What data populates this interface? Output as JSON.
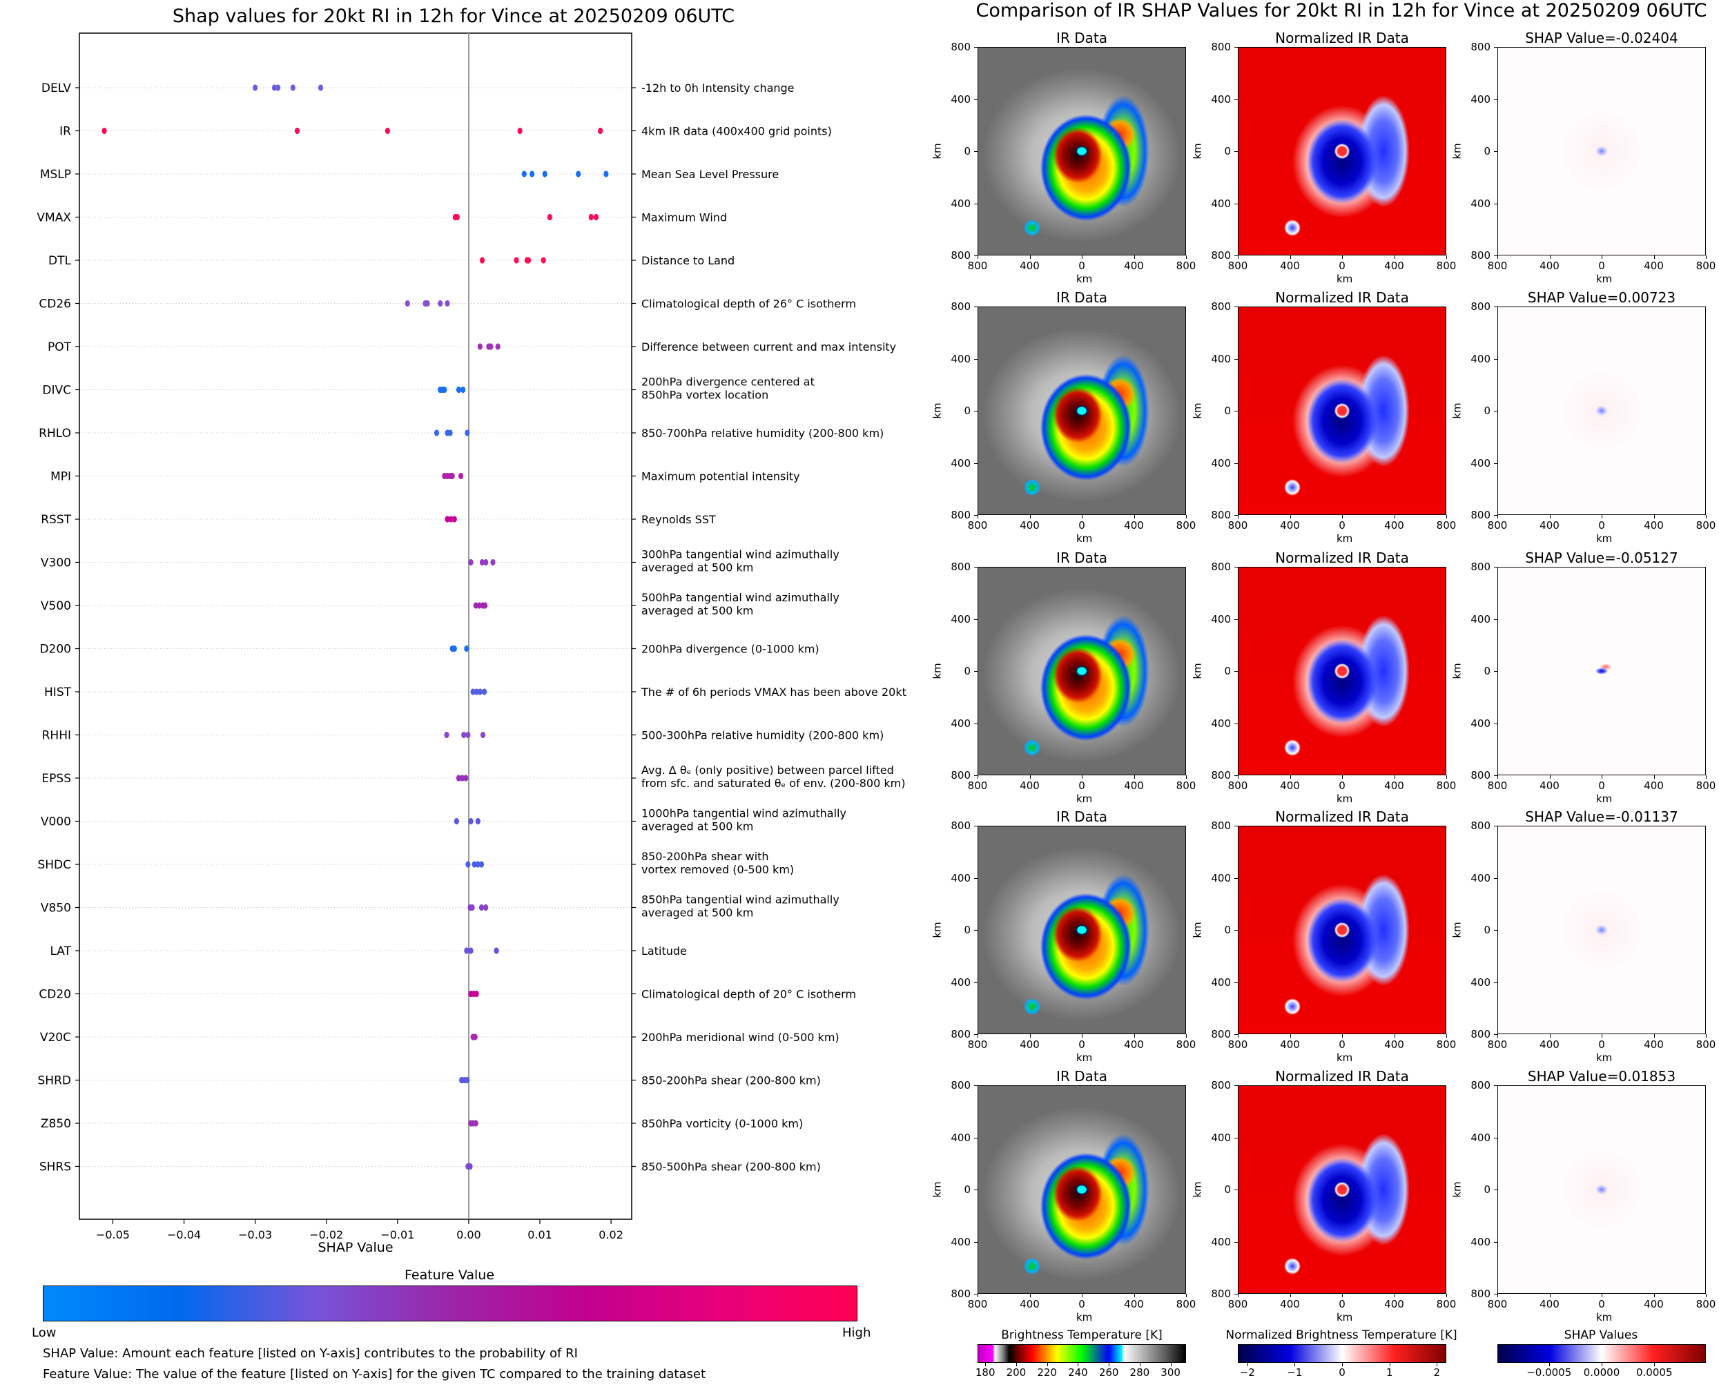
{
  "left_panel": {
    "title": "Shap values for 20kt RI in 12h for Vince at 20250209 06UTC",
    "xlabel": "SHAP Value",
    "colorbar": {
      "title": "Feature Value",
      "low_label": "Low",
      "high_label": "High",
      "colors": [
        "#008afb",
        "#0069ee",
        "#7654d9",
        "#9c25a8",
        "#c2008f",
        "#e8007a",
        "#ff0052"
      ]
    },
    "notes": [
      "SHAP Value: Amount each feature [listed on Y-axis] contributes to the probability of RI",
      "Feature Value: The value of the feature [listed on Y-axis] for the given TC compared to the training dataset"
    ]
  },
  "right_panel": {
    "title": "Comparison of IR SHAP Values for 20kt RI in 12h for Vince at 20250209 06UTC",
    "column_titles": [
      "IR Data",
      "Normalized IR Data"
    ],
    "shap_titles": [
      "SHAP Value=-0.02404",
      "SHAP Value=0.00723",
      "SHAP Value=-0.05127",
      "SHAP Value=-0.01137",
      "SHAP Value=0.01853"
    ],
    "axis_label": "km",
    "x_ticks": [
      "800",
      "400",
      "0",
      "400",
      "800"
    ],
    "y_ticks": [
      "800",
      "400",
      "0",
      "400",
      "800"
    ],
    "colorbars": [
      {
        "title": "Brightness Temperature [K]",
        "ticks": [
          "180",
          "200",
          "220",
          "240",
          "260",
          "280",
          "300"
        ],
        "range": [
          175,
          310
        ]
      },
      {
        "title": "Normalized Brightness Temperature [K]",
        "ticks": [
          "−2",
          "−1",
          "0",
          "1",
          "2"
        ],
        "range": [
          -2.2,
          2.2
        ]
      },
      {
        "title": "SHAP Values",
        "ticks": [
          "−0.0005",
          "0.0000",
          "0.0005"
        ],
        "range": [
          -0.00099,
          0.00099
        ]
      }
    ]
  },
  "chart_data": [
    {
      "type": "scatter",
      "title": "Shap values for 20kt RI in 12h for Vince at 20250209 06UTC",
      "xlabel": "SHAP Value",
      "ylabel": "",
      "xlim": [
        -0.0547,
        0.0229
      ],
      "x_ticks": [
        -0.05,
        -0.04,
        -0.03,
        -0.02,
        -0.01,
        0.0,
        0.01,
        0.02
      ],
      "x_tick_labels": [
        "−0.05",
        "−0.04",
        "−0.03",
        "−0.02",
        "−0.01",
        "0.00",
        "0.01",
        "0.02"
      ],
      "grid": "horizontal dotted per feature",
      "zero_line": 0.0,
      "color_scale": "Feature Value (Low=blue to High=red)",
      "features": [
        {
          "name": "DELV",
          "description": "-12h to 0h Intensity change",
          "points": [
            -0.03,
            -0.0273,
            -0.0268,
            -0.0247,
            -0.0208
          ],
          "color": "#6a5fe0"
        },
        {
          "name": "IR",
          "description": "4km IR data (400x400 grid points)",
          "points": [
            -0.0512,
            -0.0241,
            -0.0114,
            0.0072,
            0.0185
          ],
          "color": "#ff0a55"
        },
        {
          "name": "MSLP",
          "description": "Mean Sea Level Pressure",
          "points": [
            0.0078,
            0.0089,
            0.0107,
            0.0154,
            0.0193
          ],
          "color": "#1a6ef0"
        },
        {
          "name": "VMAX",
          "description": "Maximum Wind",
          "points": [
            -0.0019,
            -0.0016,
            0.0114,
            0.0172,
            0.0179
          ],
          "color": "#ff0a55"
        },
        {
          "name": "DTL",
          "description": "Distance to Land",
          "points": [
            0.0019,
            0.0067,
            0.0082,
            0.0084,
            0.0105
          ],
          "color": "#ff0a55"
        },
        {
          "name": "CD26",
          "description": "Climatological depth of 26° C isotherm",
          "points": [
            -0.0086,
            -0.0061,
            -0.0058,
            -0.004,
            -0.003
          ],
          "color": "#8a4ed2"
        },
        {
          "name": "POT",
          "description": "Difference between current and max intensity",
          "points": [
            0.0016,
            0.0028,
            0.0031,
            0.0041
          ],
          "color": "#a030b8"
        },
        {
          "name": "DIVC",
          "description": "200hPa divergence centered at\n850hPa vortex location",
          "points": [
            -0.004,
            -0.0037,
            -0.0034,
            -0.0014,
            -0.0008
          ],
          "color": "#1a6ef0"
        },
        {
          "name": "RHLO",
          "description": "850-700hPa relative humidity (200-800 km)",
          "points": [
            -0.0045,
            -0.003,
            -0.0026,
            -0.0002
          ],
          "color": "#3a68e8"
        },
        {
          "name": "MPI",
          "description": "Maximum potential intensity",
          "points": [
            -0.0034,
            -0.003,
            -0.0026,
            -0.0023,
            -0.0011
          ],
          "color": "#b020a8"
        },
        {
          "name": "RSST",
          "description": "Reynolds SST",
          "points": [
            -0.003,
            -0.0025,
            -0.002
          ],
          "color": "#c8009a"
        },
        {
          "name": "V300",
          "description": "300hPa tangential wind azimuthally\naveraged at 500 km",
          "points": [
            0.0003,
            0.0019,
            0.0024,
            0.0034
          ],
          "color": "#9a38c8"
        },
        {
          "name": "V500",
          "description": "500hPa tangential wind azimuthally\naveraged at 500 km",
          "points": [
            0.001,
            0.0015,
            0.002,
            0.0023
          ],
          "color": "#a028b0"
        },
        {
          "name": "D200",
          "description": "200hPa divergence (0-1000 km)",
          "points": [
            -0.0023,
            -0.002,
            -0.0003
          ],
          "color": "#1a6ef0"
        },
        {
          "name": "HIST",
          "description": "The # of 6h periods VMAX has been above 20kt",
          "points": [
            0.0006,
            0.0011,
            0.0016,
            0.0022
          ],
          "color": "#5060e0"
        },
        {
          "name": "RHHI",
          "description": "500-300hPa relative humidity (200-800 km)",
          "points": [
            -0.0031,
            -0.0007,
            -0.0001,
            0.002
          ],
          "color": "#8a48cc"
        },
        {
          "name": "EPSS",
          "description": "Avg. Δ θₑ (only positive) between parcel lifted\nfrom sfc. and saturated θₑ of env. (200-800 km)",
          "points": [
            -0.0014,
            -0.0009,
            -0.0004
          ],
          "color": "#9a30c0"
        },
        {
          "name": "V000",
          "description": "1000hPa tangential wind azimuthally\naveraged at 500 km",
          "points": [
            -0.0017,
            0.0003,
            0.0013
          ],
          "color": "#5a58e0"
        },
        {
          "name": "SHDC",
          "description": "850-200hPa shear with\nvortex removed (0-500 km)",
          "points": [
            -0.0001,
            0.0008,
            0.0013,
            0.0018
          ],
          "color": "#4a60e4"
        },
        {
          "name": "V850",
          "description": "850hPa tangential wind azimuthally\naveraged at 500 km",
          "points": [
            0.0002,
            0.0005,
            0.0018,
            0.0024
          ],
          "color": "#8a40cc"
        },
        {
          "name": "LAT",
          "description": "Latitude",
          "points": [
            -0.0003,
            0.0003,
            0.0039
          ],
          "color": "#6a50dc"
        },
        {
          "name": "CD20",
          "description": "Climatological depth of 20° C isotherm",
          "points": [
            0.0003,
            0.0007,
            0.0011
          ],
          "color": "#c8009a"
        },
        {
          "name": "V20C",
          "description": "200hPa meridional wind (0-500 km)",
          "points": [
            0.0006,
            0.0009
          ],
          "color": "#a828b0"
        },
        {
          "name": "SHRD",
          "description": "850-200hPa shear (200-800 km)",
          "points": [
            -0.001,
            -0.0006,
            -0.0002
          ],
          "color": "#5a58e0"
        },
        {
          "name": "Z850",
          "description": "850hPa vorticity (0-1000 km)",
          "points": [
            0.0003,
            0.0006,
            0.001
          ],
          "color": "#a030b8"
        },
        {
          "name": "SHRS",
          "description": "850-500hPa shear (200-800 km)",
          "points": [
            -0.0001,
            0.0002
          ],
          "color": "#7a48d4"
        }
      ]
    },
    {
      "type": "heatmap",
      "title": "Comparison of IR SHAP Values for 20kt RI in 12h for Vince at 20250209 06UTC",
      "rows": 5,
      "columns": [
        "IR Data",
        "Normalized IR Data",
        "SHAP Value"
      ],
      "shap_values": [
        -0.02404,
        0.00723,
        -0.05127,
        -0.01137,
        0.01853
      ],
      "xlabel": "km",
      "ylabel": "km",
      "xlim": [
        -800,
        800
      ],
      "ylim": [
        -800,
        800
      ]
    }
  ]
}
